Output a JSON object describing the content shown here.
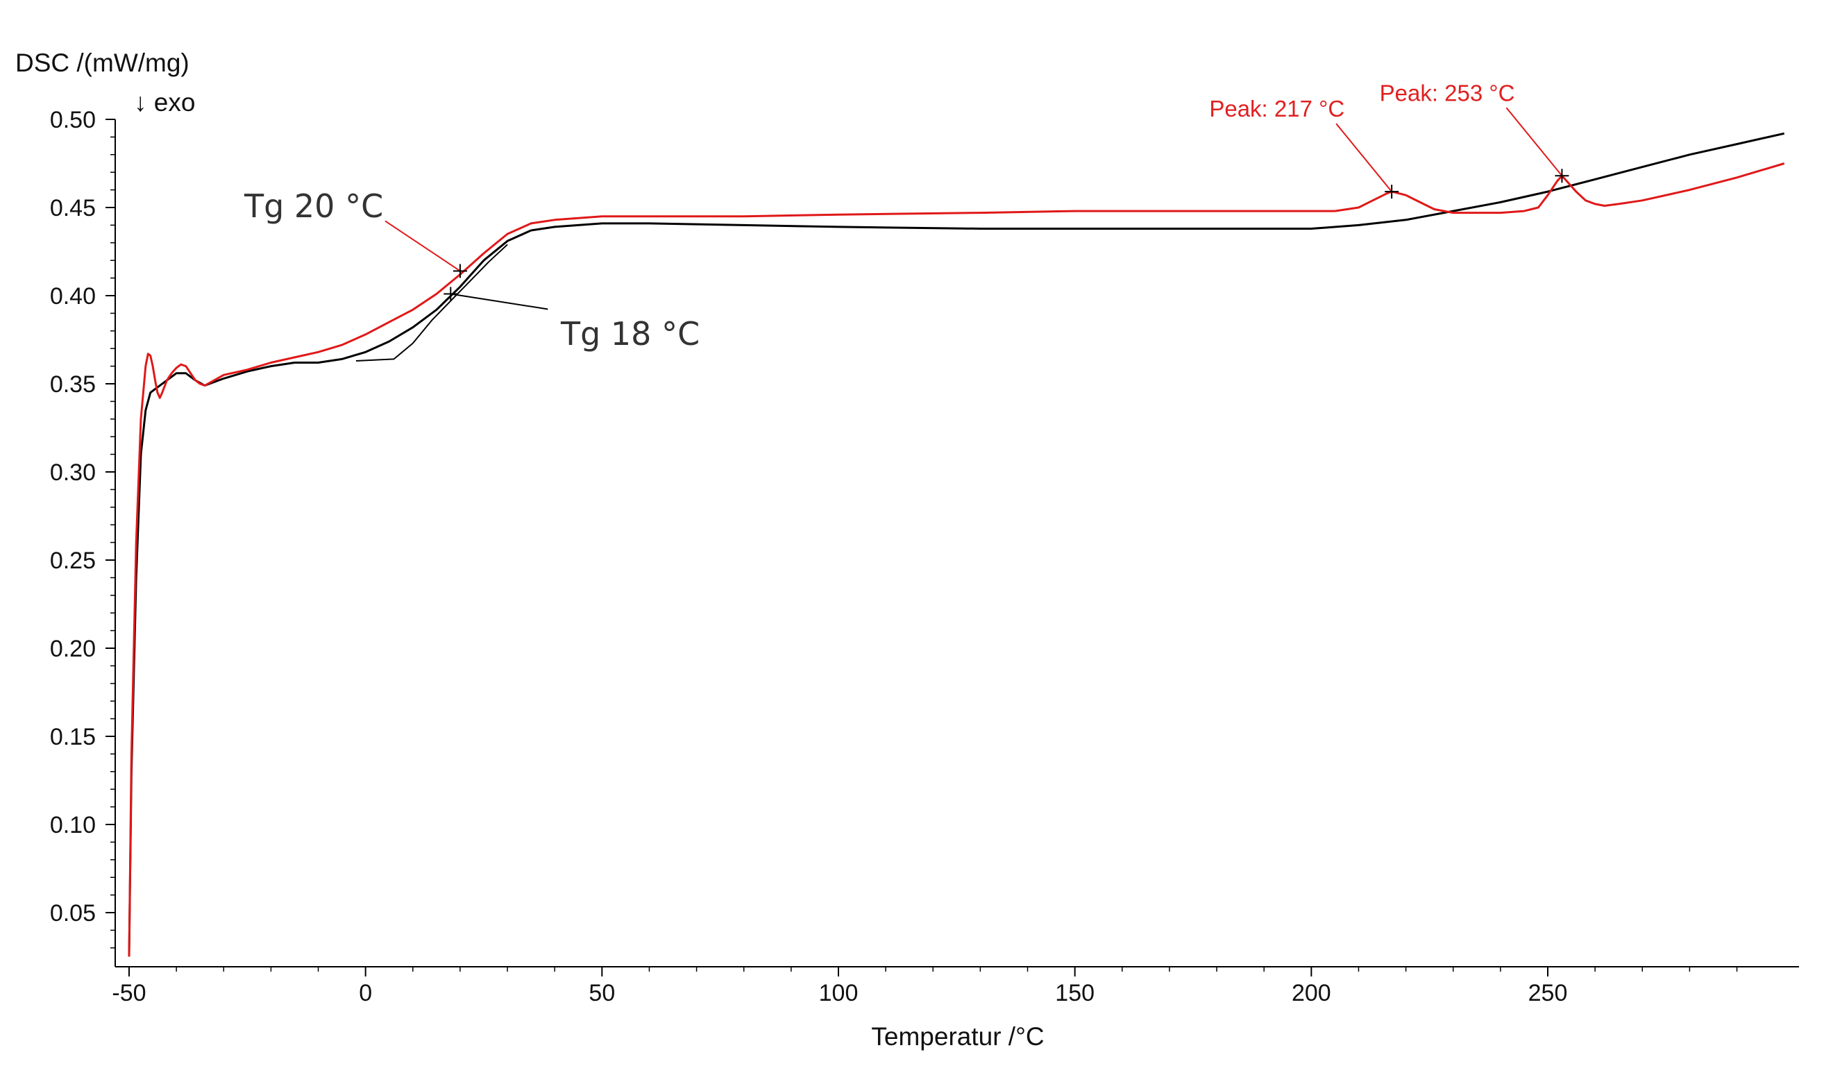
{
  "chart_data": {
    "type": "line",
    "title": "",
    "ylabel": "DSC /(mW/mg)",
    "exo_label": "↓ exo",
    "xlabel": "Temperatur /°C",
    "xlim": [
      -51,
      303
    ],
    "ylim": [
      0.02,
      0.5
    ],
    "x_ticks": [
      -50,
      0,
      50,
      100,
      150,
      200,
      250
    ],
    "x_tick_labels": [
      "-50",
      "0",
      "50",
      "100",
      "150",
      "200",
      "250"
    ],
    "y_ticks": [
      0.5,
      0.45,
      0.4,
      0.35,
      0.3,
      0.25,
      0.2,
      0.15,
      0.1,
      0.05
    ],
    "y_tick_labels": [
      "0.50",
      "0.45",
      "0.40",
      "0.35",
      "0.30",
      "0.25",
      "0.20",
      "0.15",
      "0.10",
      "0.05"
    ],
    "series": [
      {
        "name": "black",
        "color": "#000000",
        "x": [
          -50,
          -49.5,
          -48.5,
          -47.5,
          -46.5,
          -45.5,
          -44,
          -42,
          -40,
          -38,
          -36,
          -34,
          -30,
          -25,
          -20,
          -15,
          -10,
          -5,
          0,
          5,
          10,
          15,
          20,
          25,
          30,
          35,
          40,
          50,
          60,
          80,
          100,
          130,
          150,
          170,
          190,
          200,
          210,
          220,
          230,
          240,
          250,
          260,
          270,
          280,
          290,
          300
        ],
        "y": [
          0.025,
          0.13,
          0.24,
          0.31,
          0.335,
          0.345,
          0.348,
          0.352,
          0.356,
          0.356,
          0.352,
          0.349,
          0.353,
          0.357,
          0.36,
          0.362,
          0.362,
          0.364,
          0.368,
          0.374,
          0.382,
          0.392,
          0.405,
          0.42,
          0.431,
          0.437,
          0.439,
          0.441,
          0.441,
          0.44,
          0.439,
          0.438,
          0.438,
          0.438,
          0.438,
          0.438,
          0.44,
          0.443,
          0.448,
          0.453,
          0.459,
          0.466,
          0.473,
          0.48,
          0.486,
          0.492
        ]
      },
      {
        "name": "red",
        "color": "#e01818",
        "x": [
          -50,
          -49.5,
          -48.5,
          -47.5,
          -46.5,
          -46,
          -45.5,
          -45,
          -44.5,
          -44,
          -43.5,
          -43,
          -42,
          -41,
          -40,
          -39,
          -38,
          -37,
          -36,
          -35,
          -34,
          -32,
          -30,
          -25,
          -20,
          -15,
          -10,
          -5,
          0,
          5,
          10,
          15,
          20,
          25,
          30,
          35,
          40,
          50,
          60,
          80,
          100,
          130,
          150,
          170,
          190,
          205,
          210,
          213,
          216,
          217,
          220,
          223,
          226,
          230,
          240,
          245,
          248,
          250,
          252,
          253,
          254,
          256,
          258,
          260,
          262,
          265,
          270,
          280,
          290,
          300
        ],
        "y": [
          0.025,
          0.14,
          0.26,
          0.33,
          0.36,
          0.367,
          0.366,
          0.36,
          0.352,
          0.345,
          0.342,
          0.345,
          0.352,
          0.356,
          0.359,
          0.361,
          0.36,
          0.356,
          0.352,
          0.35,
          0.349,
          0.352,
          0.355,
          0.358,
          0.362,
          0.365,
          0.368,
          0.372,
          0.378,
          0.385,
          0.392,
          0.401,
          0.412,
          0.424,
          0.435,
          0.441,
          0.443,
          0.445,
          0.445,
          0.445,
          0.446,
          0.447,
          0.448,
          0.448,
          0.448,
          0.448,
          0.45,
          0.454,
          0.458,
          0.459,
          0.457,
          0.453,
          0.449,
          0.447,
          0.447,
          0.448,
          0.45,
          0.457,
          0.465,
          0.468,
          0.465,
          0.459,
          0.454,
          0.452,
          0.451,
          0.452,
          0.454,
          0.46,
          0.467,
          0.475
        ]
      },
      {
        "name": "black-reference-tangent",
        "color": "#000000",
        "x": [
          -2,
          6,
          10,
          14,
          18,
          22,
          26,
          30
        ],
        "y": [
          0.363,
          0.364,
          0.373,
          0.386,
          0.397,
          0.408,
          0.419,
          0.429
        ]
      }
    ],
    "annotations": [
      {
        "text": "Tg 20 °C",
        "x": 20,
        "y": 0.414,
        "color": "#333333",
        "kind": "tg",
        "pointer_color": "#e01818",
        "label_side": "upper-left"
      },
      {
        "text": "Tg 18 °C",
        "x": 18,
        "y": 0.401,
        "color": "#333333",
        "kind": "tg",
        "pointer_color": "#000000",
        "label_side": "lower-right"
      },
      {
        "text": "Peak: 217 °C",
        "x": 217,
        "y": 0.459,
        "color": "#e01818",
        "kind": "peak",
        "label_side": "upper-left"
      },
      {
        "text": "Peak: 253 °C",
        "x": 253,
        "y": 0.468,
        "color": "#e01818",
        "kind": "peak",
        "label_side": "upper-left"
      }
    ]
  }
}
